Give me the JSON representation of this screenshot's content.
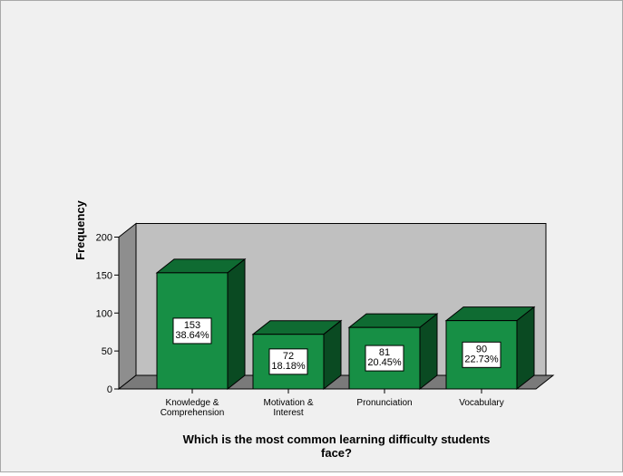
{
  "chart_data": {
    "type": "bar",
    "categories": [
      [
        "Knowledge &",
        "Comprehension"
      ],
      [
        "Motivation &",
        "Interest"
      ],
      [
        "Pronunciation"
      ],
      [
        "Vocabulary"
      ]
    ],
    "values": [
      153,
      72,
      81,
      90
    ],
    "data_labels": [
      [
        "153",
        "38.64%"
      ],
      [
        "72",
        "18.18%"
      ],
      [
        "81",
        "20.45%"
      ],
      [
        "90",
        "22.73%"
      ]
    ],
    "xlabel": [
      "Which is the most common learning difficulty students",
      "face?"
    ],
    "ylabel": "Frequency",
    "ylim": [
      0,
      200
    ],
    "yticks": [
      "0",
      "50",
      "100",
      "150",
      "200"
    ],
    "colors": {
      "bar_front": "#178f45",
      "bar_top": "#0f6b32",
      "bar_side": "#0a4a22",
      "back_wall": "#c0c0c0",
      "left_wall": "#8e8e8e",
      "floor": "#7a7a7a"
    }
  }
}
